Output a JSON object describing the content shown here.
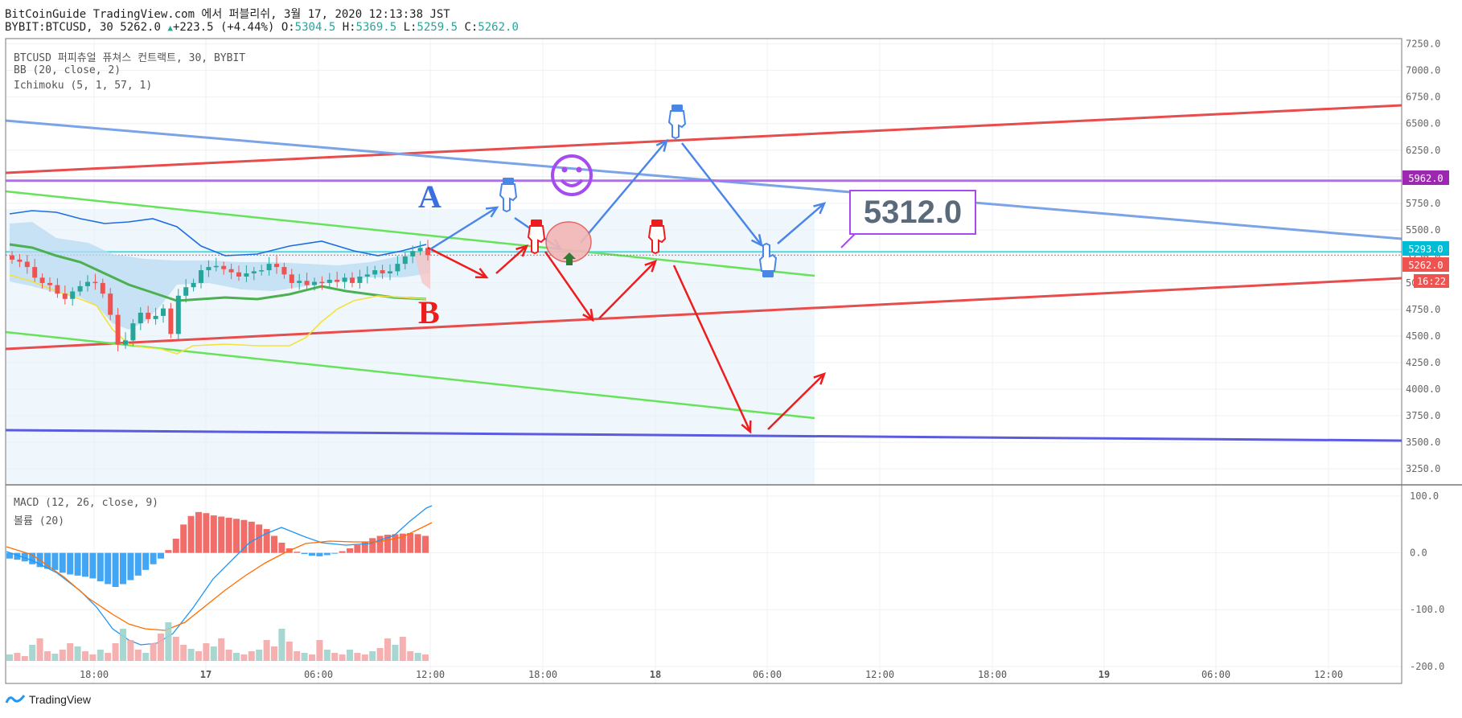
{
  "header": {
    "publisher_line": "BitCoinGuide TradingView.com 에서 퍼블리쉬, 3월 17, 2020 12:13:38 JST",
    "symbol": "BYBIT:BTCUSD, 30",
    "last": "5262.0",
    "change": "+223.5 (+4.44%)",
    "o_label": "O:",
    "o_value": "5304.5",
    "h_label": "H:",
    "h_value": "5369.5",
    "l_label": "L:",
    "l_value": "5259.5",
    "c_label": "C:",
    "c_value": "5262.0"
  },
  "legend": {
    "title": "BTCUSD 퍼피츄얼 퓨쳐스 컨트랙트, 30, BYBIT",
    "bb": "BB (20, close, 2)",
    "ichimoku": "Ichimoku (5, 1, 57, 1)",
    "macd": "MACD (12, 26, close, 9)",
    "volume": "볼륨 (20)"
  },
  "annotations": {
    "label_a": "A",
    "label_b": "B",
    "target_price": "5312.0"
  },
  "price_tags": {
    "purple": "5962.0",
    "cyan": "5293.0",
    "last": "5262.0",
    "countdown": "16:22"
  },
  "colors": {
    "up": "#26a69a",
    "down": "#ef5350",
    "trend_red": "#e84c4c",
    "trend_green": "#66e35a",
    "trend_blue": "#7aa3e8",
    "support_blue": "#5b5be0",
    "purple": "#b36cf0",
    "cyan": "#4dd8e0",
    "arrow_red": "#ee1c1c",
    "arrow_blue": "#4a86e8",
    "macd": "#2196f3",
    "signal": "#ff6d00"
  },
  "footer": {
    "brand": "TradingView"
  },
  "chart_data": [
    {
      "type": "candlestick",
      "title": "BTCUSD 퍼피츄얼 퓨쳐스 컨트랙트, 30, BYBIT",
      "ylim": [
        3100,
        7300
      ],
      "y_ticks": [
        7250,
        7000,
        6750,
        6500,
        6250,
        6000,
        5750,
        5500,
        5250,
        5000,
        4750,
        4500,
        4250,
        4000,
        3750,
        3500,
        3250
      ],
      "x_ticks": [
        "18:00",
        "17",
        "06:00",
        "12:00",
        "18:00",
        "18",
        "06:00",
        "12:00",
        "18:00",
        "19",
        "06:00",
        "12:00"
      ],
      "candles_close": [
        5220,
        5200,
        5150,
        5050,
        5000,
        4980,
        4900,
        4850,
        4920,
        4970,
        5010,
        5000,
        4900,
        4700,
        4420,
        4460,
        4620,
        4720,
        4660,
        4690,
        4760,
        4520,
        4880,
        4960,
        5000,
        5120,
        5150,
        5160,
        5130,
        5100,
        5060,
        5090,
        5110,
        5120,
        5180,
        5150,
        5080,
        5000,
        5020,
        4980,
        5010,
        5000,
        5030,
        5010,
        5050,
        5000,
        5060,
        5080,
        5120,
        5090,
        5110,
        5180,
        5250,
        5300,
        5330,
        5262
      ],
      "levels": {
        "resistance_purple": 5962.0,
        "cyan": 5293.0,
        "last": 5262.0
      },
      "target": 5312.0
    },
    {
      "type": "bar",
      "title": "MACD (12, 26, close, 9)",
      "ylim": [
        -230,
        110
      ],
      "y_ticks": [
        100.0,
        0.0,
        -100.0,
        -200.0
      ],
      "histogram": [
        -10,
        -12,
        -15,
        -20,
        -25,
        -28,
        -30,
        -35,
        -38,
        -40,
        -42,
        -45,
        -50,
        -55,
        -60,
        -55,
        -48,
        -40,
        -30,
        -20,
        -10,
        5,
        25,
        50,
        65,
        72,
        70,
        66,
        64,
        62,
        60,
        58,
        55,
        50,
        42,
        30,
        18,
        8,
        2,
        -2,
        -5,
        -6,
        -4,
        -1,
        3,
        8,
        14,
        20,
        26,
        30,
        32,
        33,
        34,
        35,
        33,
        30
      ]
    },
    {
      "type": "bar",
      "title": "볼륨 (20)"
    }
  ]
}
